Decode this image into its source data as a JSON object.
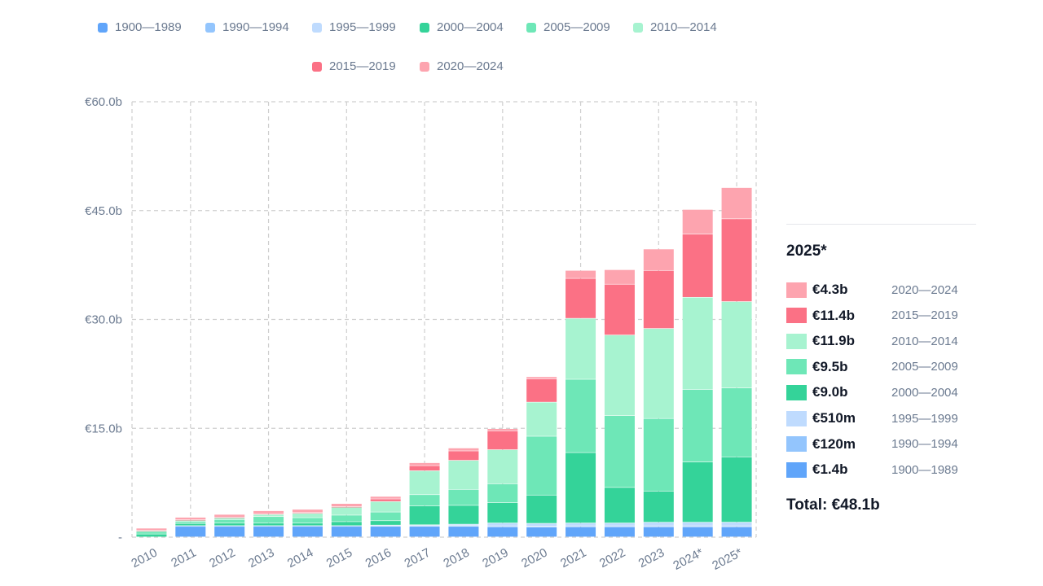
{
  "chart_data": {
    "type": "bar",
    "stacked": true,
    "categories": [
      "2010",
      "2011",
      "2012",
      "2013",
      "2014",
      "2015",
      "2016",
      "2017",
      "2018",
      "2019",
      "2020",
      "2021",
      "2022",
      "2023",
      "2024*",
      "2025*"
    ],
    "series": [
      {
        "name": "1900—1989",
        "color": "#60a5fa",
        "values": [
          0,
          1.45,
          1.45,
          1.45,
          1.45,
          1.45,
          1.45,
          1.45,
          1.45,
          1.4,
          1.35,
          1.4,
          1.4,
          1.4,
          1.4,
          1.4
        ]
      },
      {
        "name": "1990—1994",
        "color": "#93c5fd",
        "values": [
          0,
          0.05,
          0.05,
          0.05,
          0.05,
          0.05,
          0.08,
          0.1,
          0.1,
          0.12,
          0.12,
          0.12,
          0.12,
          0.12,
          0.12,
          0.12
        ]
      },
      {
        "name": "1995—1999",
        "color": "#bfdbfe",
        "values": [
          0,
          0.05,
          0.05,
          0.05,
          0.05,
          0.05,
          0.1,
          0.12,
          0.2,
          0.4,
          0.4,
          0.4,
          0.4,
          0.5,
          0.5,
          0.51
        ]
      },
      {
        "name": "2000—2004",
        "color": "#34d399",
        "values": [
          0.4,
          0.3,
          0.35,
          0.35,
          0.35,
          0.55,
          0.6,
          2.6,
          2.6,
          2.8,
          3.9,
          9.7,
          4.9,
          4.3,
          8.3,
          9.0
        ]
      },
      {
        "name": "2005—2009",
        "color": "#6ee7b7",
        "values": [
          0.35,
          0.25,
          0.5,
          0.9,
          0.75,
          0.9,
          1.2,
          1.55,
          2.2,
          2.6,
          8.1,
          10.1,
          9.9,
          10.0,
          10.0,
          9.5
        ]
      },
      {
        "name": "2010—2014",
        "color": "#a7f3d0",
        "values": [
          0.1,
          0.2,
          0.25,
          0.3,
          0.6,
          1.1,
          1.45,
          3.3,
          4.0,
          4.7,
          4.7,
          8.4,
          11.1,
          12.4,
          12.7,
          11.9
        ]
      },
      {
        "name": "2015—2019",
        "color": "#fb7185",
        "values": [
          0.05,
          0.05,
          0.05,
          0.1,
          0.1,
          0.05,
          0.35,
          0.7,
          1.3,
          2.6,
          3.2,
          5.5,
          7.0,
          8.0,
          8.7,
          11.4
        ]
      },
      {
        "name": "2020—2024",
        "color": "#fda4af",
        "values": [
          0.3,
          0.35,
          0.4,
          0.4,
          0.45,
          0.45,
          0.35,
          0.4,
          0.4,
          0.3,
          0.3,
          1.1,
          2.0,
          2.95,
          3.4,
          4.3
        ]
      }
    ],
    "ylim": [
      0,
      60
    ],
    "yticks": [
      0,
      15,
      30,
      45,
      60
    ],
    "ytick_labels": [
      "-",
      "€15.0b",
      "€30.0b",
      "€45.0b",
      "€60.0b"
    ],
    "grid": true,
    "legend_position": "top",
    "title": "",
    "xlabel": "",
    "ylabel": ""
  },
  "panel": {
    "year": "2025*",
    "rows": [
      {
        "value": "€4.3b",
        "range": "2020—2024",
        "color": "#fda4af"
      },
      {
        "value": "€11.4b",
        "range": "2015—2019",
        "color": "#fb7185"
      },
      {
        "value": "€11.9b",
        "range": "2010—2014",
        "color": "#a7f3d0"
      },
      {
        "value": "€9.5b",
        "range": "2005—2009",
        "color": "#6ee7b7"
      },
      {
        "value": "€9.0b",
        "range": "2000—2004",
        "color": "#34d399"
      },
      {
        "value": "€510m",
        "range": "1995—1999",
        "color": "#bfdbfe"
      },
      {
        "value": "€120m",
        "range": "1990—1994",
        "color": "#93c5fd"
      },
      {
        "value": "€1.4b",
        "range": "1900—1989",
        "color": "#60a5fa"
      }
    ],
    "total": "Total: €48.1b"
  }
}
